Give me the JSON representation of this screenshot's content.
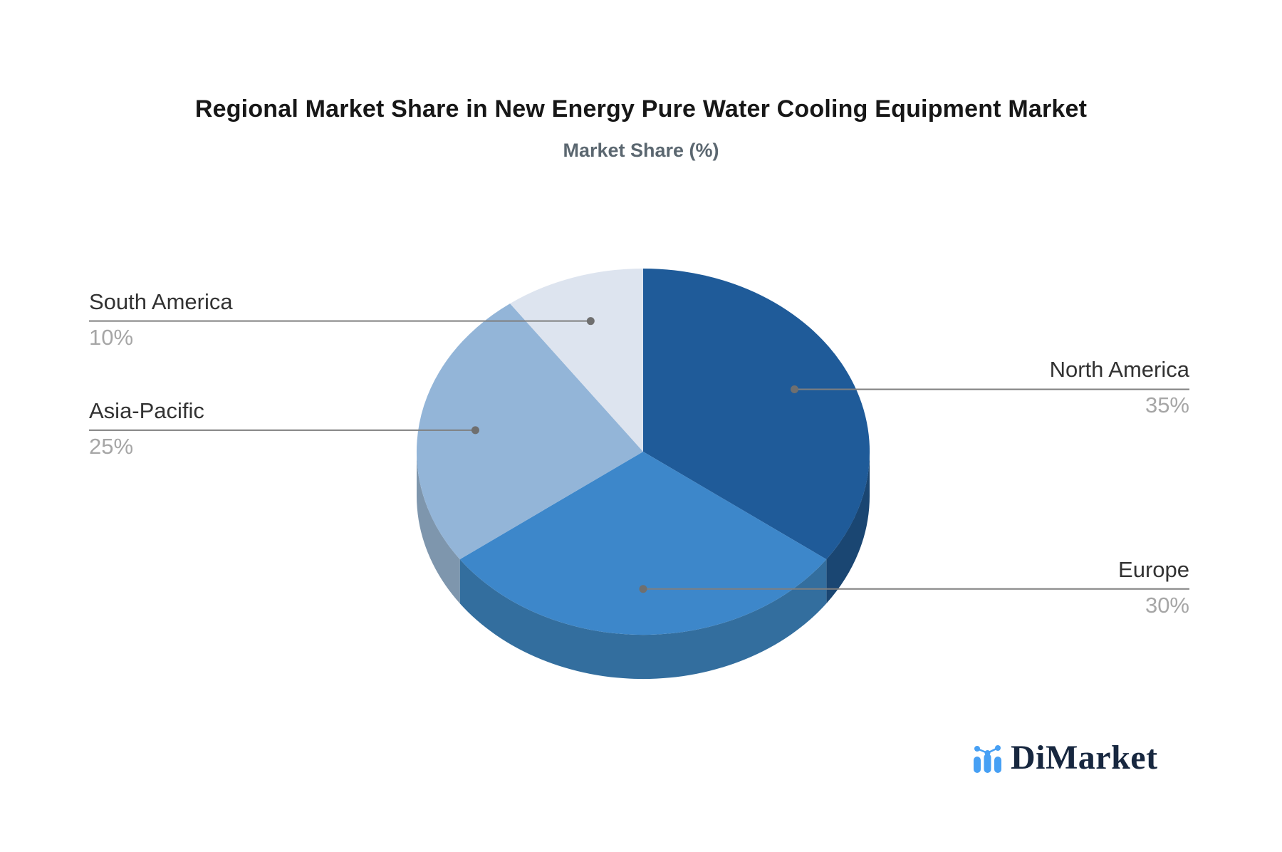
{
  "title": "Regional Market Share in New Energy Pure Water Cooling Equipment Market",
  "subtitle": "Market Share (%)",
  "logo": {
    "text": "DiMarket",
    "icon_color": "#47a0f4",
    "text_color": "#17273f"
  },
  "chart_data": {
    "type": "pie",
    "title": "Regional Market Share in New Energy Pure Water Cooling Equipment Market",
    "subtitle": "Market Share (%)",
    "unit": "%",
    "style": "3d-pie",
    "start_angle_deg": 0,
    "direction": "clockwise",
    "slices": [
      {
        "label": "North America",
        "value": 35,
        "pct_label": "35%",
        "color": "#1f5b99",
        "side_color": "#1a4672",
        "label_side": "right"
      },
      {
        "label": "Europe",
        "value": 30,
        "pct_label": "30%",
        "color": "#3d87ca",
        "side_color": "#336e9e",
        "label_side": "right"
      },
      {
        "label": "Asia-Pacific",
        "value": 25,
        "pct_label": "25%",
        "color": "#93b5d8",
        "side_color": "#7e96ad",
        "label_side": "left"
      },
      {
        "label": "South America",
        "value": 10,
        "pct_label": "10%",
        "color": "#dde4ef",
        "side_color": "#c2cbda",
        "label_side": "left"
      }
    ],
    "label_text_color": "#323232",
    "pct_text_color": "#a6a6a6",
    "leader_line_color": "#7f7f7f",
    "legend_position": "none"
  }
}
